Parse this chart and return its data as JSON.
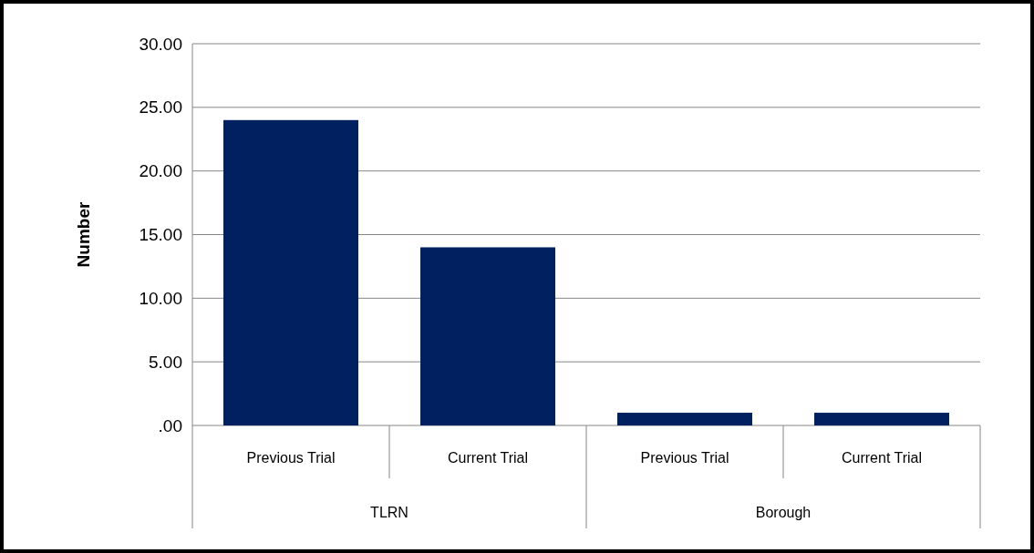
{
  "chart_data": {
    "type": "bar",
    "ylabel": "Number",
    "categories": [
      "Previous Trial",
      "Current Trial",
      "Previous Trial",
      "Current Trial"
    ],
    "values": [
      24,
      14,
      1,
      1
    ],
    "color": "#002060",
    "ylim": [
      0,
      30
    ],
    "yticks": [
      {
        "value": 0,
        "label": ".00"
      },
      {
        "value": 5,
        "label": "5.00"
      },
      {
        "value": 10,
        "label": "10.00"
      },
      {
        "value": 15,
        "label": "15.00"
      },
      {
        "value": 20,
        "label": "20.00"
      },
      {
        "value": 25,
        "label": "25.00"
      },
      {
        "value": 30,
        "label": "30.00"
      }
    ],
    "grid": "y",
    "annotations": [
      "TLRN",
      "Borough"
    ]
  }
}
